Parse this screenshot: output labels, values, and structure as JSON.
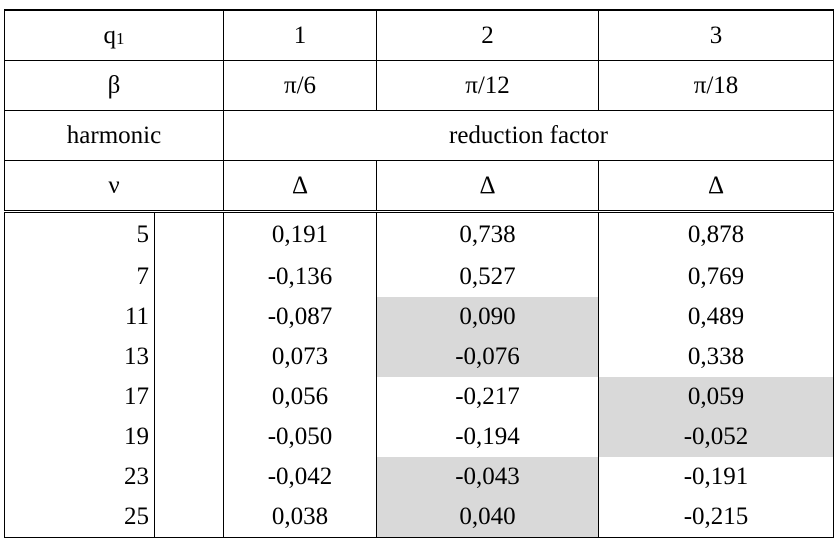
{
  "header": {
    "row1": {
      "label_main": "q",
      "label_sub": "1",
      "values": [
        "1",
        "2",
        "3"
      ]
    },
    "row2": {
      "label": "β",
      "values": [
        "π/6",
        "π/12",
        "π/18"
      ]
    },
    "row3": {
      "label": "harmonic",
      "span_label": "reduction factor"
    },
    "row4": {
      "label": "ν",
      "values": [
        "Δ",
        "Δ",
        "Δ"
      ]
    }
  },
  "rows": [
    {
      "nu": "5",
      "v": [
        "0,191",
        "0,738",
        "0,878"
      ],
      "highlight": [
        false,
        false,
        false
      ]
    },
    {
      "nu": "7",
      "v": [
        "-0,136",
        "0,527",
        "0,769"
      ],
      "highlight": [
        false,
        false,
        false
      ]
    },
    {
      "nu": "11",
      "v": [
        "-0,087",
        "0,090",
        "0,489"
      ],
      "highlight": [
        false,
        true,
        false
      ]
    },
    {
      "nu": "13",
      "v": [
        "0,073",
        "-0,076",
        "0,338"
      ],
      "highlight": [
        false,
        true,
        false
      ]
    },
    {
      "nu": "17",
      "v": [
        "0,056",
        "-0,217",
        "0,059"
      ],
      "highlight": [
        false,
        false,
        true
      ]
    },
    {
      "nu": "19",
      "v": [
        "-0,050",
        "-0,194",
        "-0,052"
      ],
      "highlight": [
        false,
        false,
        true
      ]
    },
    {
      "nu": "23",
      "v": [
        "-0,042",
        "-0,043",
        "-0,191"
      ],
      "highlight": [
        false,
        true,
        false
      ]
    },
    {
      "nu": "25",
      "v": [
        "0,038",
        "0,040",
        "-0,215"
      ],
      "highlight": [
        false,
        true,
        false
      ]
    }
  ],
  "colors": {
    "highlight": "#d9d9d9",
    "border": "#000000"
  }
}
